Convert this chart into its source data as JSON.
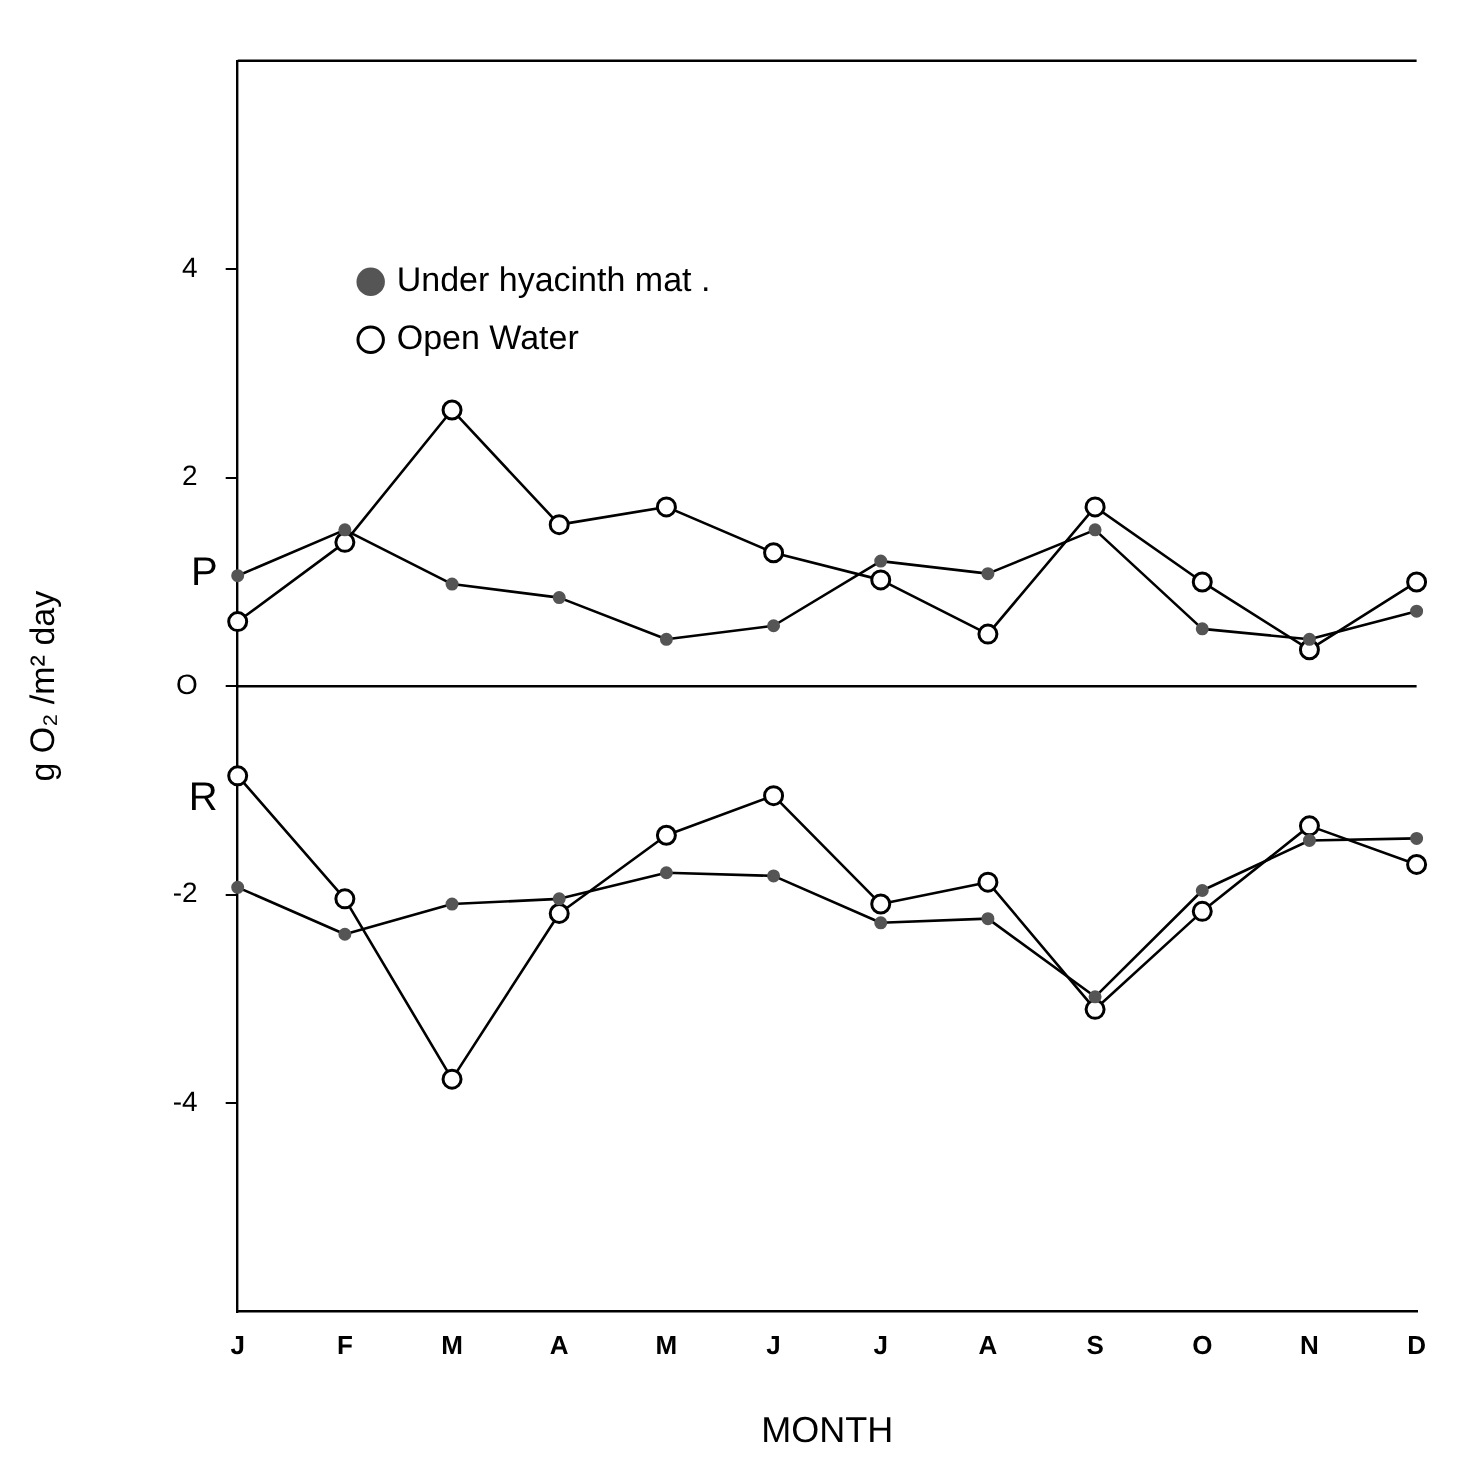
{
  "chart_data": {
    "type": "line",
    "xlabel": "MONTH",
    "ylabel": "g O₂ /m² day",
    "categories": [
      "J",
      "F",
      "M",
      "A",
      "M",
      "J",
      "J",
      "A",
      "S",
      "O",
      "N",
      "D"
    ],
    "ylim": [
      -6,
      6
    ],
    "yticks": [
      -4,
      -2,
      {
        "value": 0,
        "label": "O"
      },
      2,
      4
    ],
    "grid": false,
    "legend": "top left",
    "marker": "circle",
    "line_style": "solid",
    "ref_lines": [
      {
        "axis": "y",
        "value": 0,
        "color": "#000000"
      }
    ],
    "annotations": [
      "P",
      "R"
    ],
    "series": [
      {
        "name": "Under hyacinth mat .",
        "color": "#555555",
        "values": [
          1.06,
          1.5,
          0.98,
          0.85,
          0.45,
          0.58,
          1.2,
          1.08,
          1.5,
          0.55,
          0.45,
          0.72
        ]
      },
      {
        "name": "Open Water",
        "color": "#000000",
        "values": [
          0.62,
          1.38,
          2.65,
          1.55,
          1.72,
          1.28,
          1.02,
          0.5,
          1.72,
          1.0,
          0.35,
          1.0
        ]
      },
      {
        "color": "#555555",
        "values": [
          -1.93,
          -2.38,
          -2.09,
          -2.04,
          -1.79,
          -1.82,
          -2.27,
          -2.23,
          -2.98,
          -1.96,
          -1.48,
          -1.46
        ]
      },
      {
        "color": "#000000",
        "values": [
          -0.86,
          -2.04,
          -3.77,
          -2.18,
          -1.43,
          -1.05,
          -2.09,
          -1.88,
          -3.1,
          -2.16,
          -1.34,
          -1.71
        ]
      }
    ]
  }
}
